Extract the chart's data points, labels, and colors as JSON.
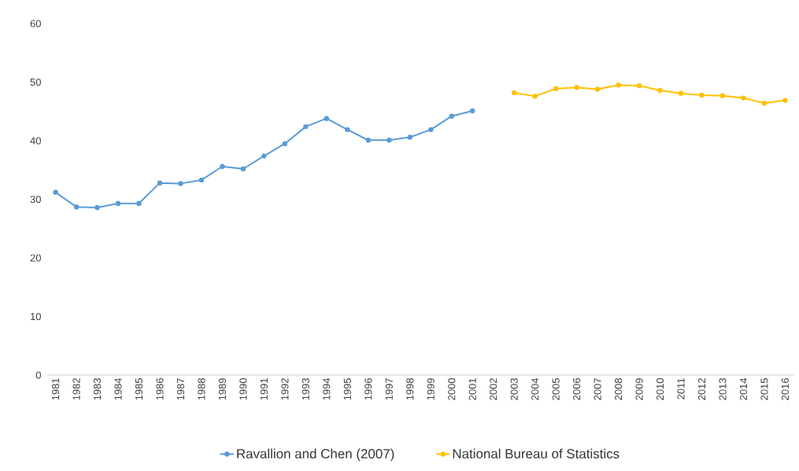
{
  "chart_data": {
    "type": "line",
    "categories": [
      "1981",
      "1982",
      "1983",
      "1984",
      "1985",
      "1986",
      "1987",
      "1988",
      "1989",
      "1990",
      "1991",
      "1992",
      "1993",
      "1994",
      "1995",
      "1996",
      "1997",
      "1998",
      "1999",
      "2000",
      "2001",
      "2002",
      "2003",
      "2004",
      "2005",
      "2006",
      "2007",
      "2008",
      "2009",
      "2010",
      "2011",
      "2012",
      "2013",
      "2014",
      "2015",
      "2016"
    ],
    "series": [
      {
        "name": "Ravallion and Chen (2007)",
        "color": "#5b9bd5",
        "values": [
          31.2,
          28.7,
          28.6,
          29.3,
          29.3,
          32.8,
          32.7,
          33.3,
          35.6,
          35.2,
          37.4,
          39.5,
          42.4,
          43.8,
          41.9,
          40.1,
          40.1,
          40.6,
          41.9,
          44.2,
          45.1,
          null,
          null,
          null,
          null,
          null,
          null,
          null,
          null,
          null,
          null,
          null,
          null,
          null,
          null,
          null
        ]
      },
      {
        "name": "National Bureau of Statistics",
        "color": "#ffc000",
        "values": [
          null,
          null,
          null,
          null,
          null,
          null,
          null,
          null,
          null,
          null,
          null,
          null,
          null,
          null,
          null,
          null,
          null,
          null,
          null,
          null,
          null,
          null,
          48.2,
          47.6,
          48.9,
          49.1,
          48.8,
          49.5,
          49.4,
          48.6,
          48.1,
          47.8,
          47.7,
          47.3,
          46.4,
          46.9
        ]
      }
    ],
    "ylim": [
      0,
      60
    ],
    "yticks": [
      0,
      10,
      20,
      30,
      40,
      50,
      60
    ],
    "grid": false,
    "legend": "bottom",
    "marker": "circle",
    "line_style": "solid"
  }
}
